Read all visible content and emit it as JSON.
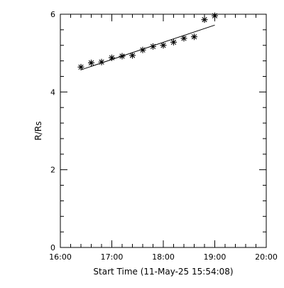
{
  "chart_data": {
    "type": "scatter",
    "xlabel": "Start Time (11-May-25 15:54:08)",
    "ylabel": "R/Rs",
    "x_ticks": [
      "16:00",
      "17:00",
      "18:00",
      "19:00",
      "20:00"
    ],
    "y_ticks": [
      "0",
      "2",
      "4",
      "6"
    ],
    "xlim": [
      "16:00",
      "20:00"
    ],
    "ylim": [
      0,
      6
    ],
    "grid": false,
    "series": [
      {
        "marker": "asterisk",
        "points": [
          {
            "x": "16:24",
            "y": 4.64
          },
          {
            "x": "16:36",
            "y": 4.75
          },
          {
            "x": "16:48",
            "y": 4.77
          },
          {
            "x": "17:00",
            "y": 4.88
          },
          {
            "x": "17:12",
            "y": 4.92
          },
          {
            "x": "17:24",
            "y": 4.94
          },
          {
            "x": "17:36",
            "y": 5.08
          },
          {
            "x": "17:48",
            "y": 5.17
          },
          {
            "x": "18:00",
            "y": 5.2
          },
          {
            "x": "18:12",
            "y": 5.28
          },
          {
            "x": "18:24",
            "y": 5.38
          },
          {
            "x": "18:36",
            "y": 5.42
          },
          {
            "x": "18:48",
            "y": 5.86
          },
          {
            "x": "19:00",
            "y": 5.96
          }
        ]
      }
    ],
    "fit_line": {
      "x": [
        "16:24",
        "19:00"
      ],
      "y": [
        4.57,
        5.72
      ]
    },
    "colors": {
      "axis": "#000000",
      "marker": "#000000",
      "line": "#000000",
      "background": "#ffffff"
    }
  }
}
